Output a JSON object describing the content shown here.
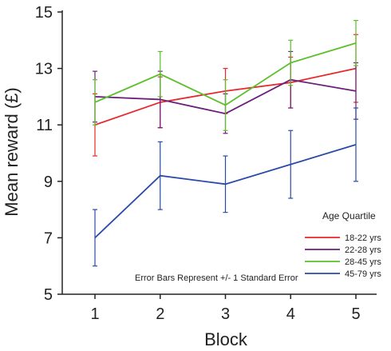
{
  "chart_data": {
    "type": "line",
    "title": "",
    "xlabel": "Block",
    "ylabel": "Mean reward (£)",
    "x": [
      1,
      2,
      3,
      4,
      5
    ],
    "x_tick_labels": [
      "1",
      "2",
      "3",
      "4",
      "5"
    ],
    "ylim": [
      5,
      15
    ],
    "y_ticks": [
      5,
      7,
      9,
      11,
      13,
      15
    ],
    "grid": false,
    "legend": {
      "title": "Age Quartile",
      "position": "bottom-right"
    },
    "annotation": "Error Bars Represent +/- 1 Standard Error",
    "series": [
      {
        "name": "18-22 yrs",
        "color": "#e8272b",
        "values": [
          11.0,
          11.8,
          12.2,
          12.5,
          13.0
        ],
        "errors": [
          1.1,
          0.9,
          0.8,
          0.9,
          1.2
        ]
      },
      {
        "name": "22-28 yrs",
        "color": "#6b1f7a",
        "values": [
          12.0,
          11.9,
          11.4,
          12.6,
          12.2
        ],
        "errors": [
          0.9,
          1.0,
          0.7,
          1.0,
          1.0
        ]
      },
      {
        "name": "28-45 yrs",
        "color": "#5cbf2a",
        "values": [
          11.8,
          12.8,
          11.7,
          13.2,
          13.9
        ],
        "errors": [
          0.8,
          0.8,
          0.9,
          0.8,
          0.8
        ]
      },
      {
        "name": "45-79 yrs",
        "color": "#2a4aa8",
        "values": [
          7.0,
          9.2,
          8.9,
          9.6,
          10.3
        ],
        "errors": [
          1.0,
          1.2,
          1.0,
          1.2,
          1.3
        ]
      }
    ]
  }
}
